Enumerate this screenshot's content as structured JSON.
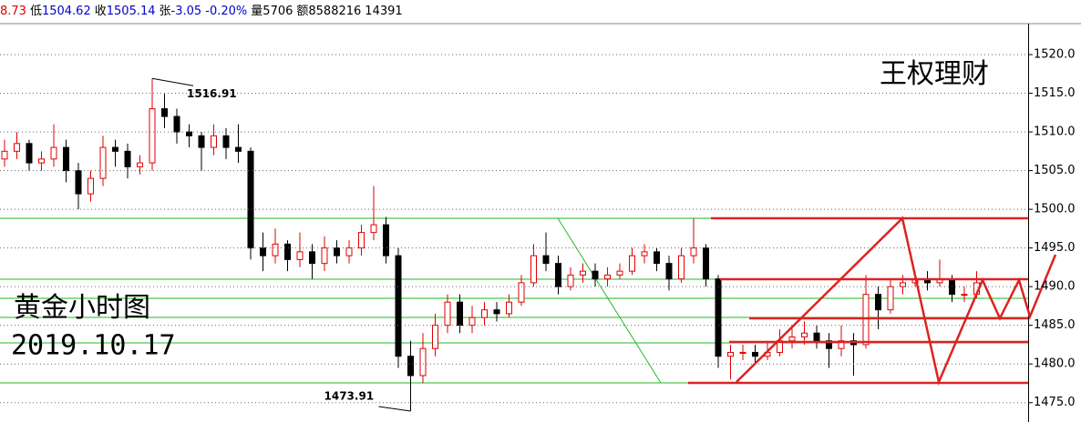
{
  "chart_data": {
    "type": "candlestick",
    "header_items": [
      {
        "text": "8.73",
        "color": "#e00000"
      },
      {
        "text": "低",
        "color": "#000000"
      },
      {
        "text": "1504.62",
        "color": "#0000cc"
      },
      {
        "text": "收",
        "color": "#000000"
      },
      {
        "text": "1505.14",
        "color": "#0000cc"
      },
      {
        "text": "张",
        "color": "#000000"
      },
      {
        "text": "-3.05 -0.20%",
        "color": "#0000cc"
      },
      {
        "text": "量5706",
        "color": "#000000"
      },
      {
        "text": "额8588216",
        "color": "#000000"
      },
      {
        "text": "14391",
        "color": "#000000"
      }
    ],
    "watermark": "王权理财",
    "title": "黄金小时图",
    "date": "2019.10.17",
    "annotations": [
      {
        "text": "1516.91",
        "index": 12
      },
      {
        "text": "1473.91",
        "index": 33
      }
    ],
    "up_color": "#e00000",
    "down_color": "#000000",
    "open": [
      1506.5,
      1507.5,
      1508.5,
      1506,
      1506.5,
      1508,
      1505,
      1502,
      1504,
      1508,
      1507.5,
      1505.5,
      1506,
      1513,
      1512,
      1510,
      1509.5,
      1508,
      1509.5,
      1508,
      1507.5,
      1495,
      1494,
      1495.5,
      1493.5,
      1494.5,
      1493,
      1495,
      1494,
      1495,
      1497,
      1498,
      1494,
      1481,
      1478.5,
      1482,
      1485,
      1488,
      1485,
      1486,
      1487,
      1486.5,
      1488,
      1490.5,
      1494,
      1493,
      1490,
      1491.5,
      1492,
      1491,
      1491.5,
      1492,
      1494,
      1494.5,
      1493,
      1491,
      1494,
      1495,
      1491,
      1481,
      1481.5,
      1481.5,
      1481,
      1481.5,
      1483,
      1483.5,
      1484,
      1483,
      1482,
      1483,
      1482.5,
      1489,
      1487,
      1490,
      1490.5,
      1491,
      1490.5,
      1491,
      1489,
      1489
    ],
    "high": [
      1509,
      1510,
      1509,
      1507.5,
      1511,
      1509,
      1506,
      1505,
      1509.5,
      1509,
      1508.5,
      1507,
      1516.91,
      1515,
      1513,
      1511,
      1510,
      1511,
      1510.5,
      1511,
      1508,
      1497,
      1497.5,
      1496,
      1497,
      1495.5,
      1496.5,
      1496,
      1496,
      1498,
      1503,
      1499,
      1495,
      1483,
      1484,
      1486.5,
      1489,
      1489,
      1487.5,
      1488,
      1488,
      1489,
      1491.5,
      1495.5,
      1497,
      1494,
      1492.5,
      1493,
      1493,
      1492.5,
      1493,
      1495,
      1495.5,
      1495,
      1494,
      1495,
      1498.8,
      1495.5,
      1491.5,
      1482.5,
      1482.5,
      1482.5,
      1483,
      1484.5,
      1485,
      1485.5,
      1485,
      1484,
      1485,
      1484,
      1491.5,
      1490,
      1491,
      1491.5,
      1492,
      1492,
      1493.5,
      1491.5,
      1490,
      1492
    ],
    "low": [
      1505.5,
      1506.5,
      1505,
      1505,
      1505.5,
      1503.5,
      1500,
      1501,
      1503,
      1505.5,
      1504,
      1504.5,
      1505,
      1510.5,
      1508.5,
      1508,
      1505,
      1507,
      1506.5,
      1506,
      1493.5,
      1492,
      1493,
      1492,
      1492.5,
      1491,
      1492,
      1493,
      1493,
      1494,
      1496,
      1493,
      1479.5,
      1473.91,
      1477.5,
      1481,
      1484,
      1484,
      1484,
      1485,
      1485.5,
      1486,
      1487.5,
      1490,
      1492,
      1489,
      1489.5,
      1490.5,
      1490,
      1490,
      1491,
      1491.5,
      1493,
      1492,
      1489.5,
      1490.5,
      1493,
      1490,
      1479.5,
      1478,
      1480.5,
      1480,
      1480.5,
      1481,
      1482,
      1482.5,
      1482,
      1479.5,
      1481,
      1478.5,
      1482,
      1484.5,
      1486.5,
      1489,
      1490,
      1489.5,
      1490,
      1488,
      1488,
      1488.5
    ],
    "close": [
      1507.5,
      1508.5,
      1506,
      1506.5,
      1508,
      1505,
      1502,
      1504,
      1508,
      1507.5,
      1505.5,
      1506,
      1513,
      1512,
      1510,
      1509.5,
      1508,
      1509.5,
      1508,
      1507.5,
      1495,
      1494,
      1495.5,
      1493.5,
      1494.5,
      1493,
      1495,
      1494,
      1495,
      1497,
      1498,
      1494,
      1481,
      1478.5,
      1482,
      1485,
      1488,
      1485,
      1486,
      1487,
      1486.5,
      1488,
      1490.5,
      1494,
      1493,
      1490,
      1491.5,
      1492,
      1491,
      1491.5,
      1492,
      1494,
      1494.5,
      1493,
      1491,
      1494,
      1495,
      1491,
      1481,
      1481.5,
      1481.5,
      1481,
      1481.5,
      1483,
      1483.5,
      1484,
      1483,
      1482,
      1483,
      1482.5,
      1489,
      1487,
      1490,
      1490.5,
      1491,
      1490.5,
      1491,
      1489,
      1489,
      1490.5
    ],
    "ylim": [
      1472.5,
      1524
    ],
    "yticks": [
      {
        "value": 1475,
        "label": "1475.0"
      },
      {
        "value": 1480,
        "label": "1480.0"
      },
      {
        "value": 1485,
        "label": "1485.0"
      },
      {
        "value": 1490,
        "label": "1490.0"
      },
      {
        "value": 1495,
        "label": "1495.0"
      },
      {
        "value": 1500,
        "label": "1500.0"
      },
      {
        "value": 1505,
        "label": "1505.0"
      },
      {
        "value": 1510,
        "label": "1510.0"
      },
      {
        "value": 1515,
        "label": "1515.0"
      },
      {
        "value": 1520,
        "label": "1520.0"
      }
    ],
    "grid": true
  }
}
